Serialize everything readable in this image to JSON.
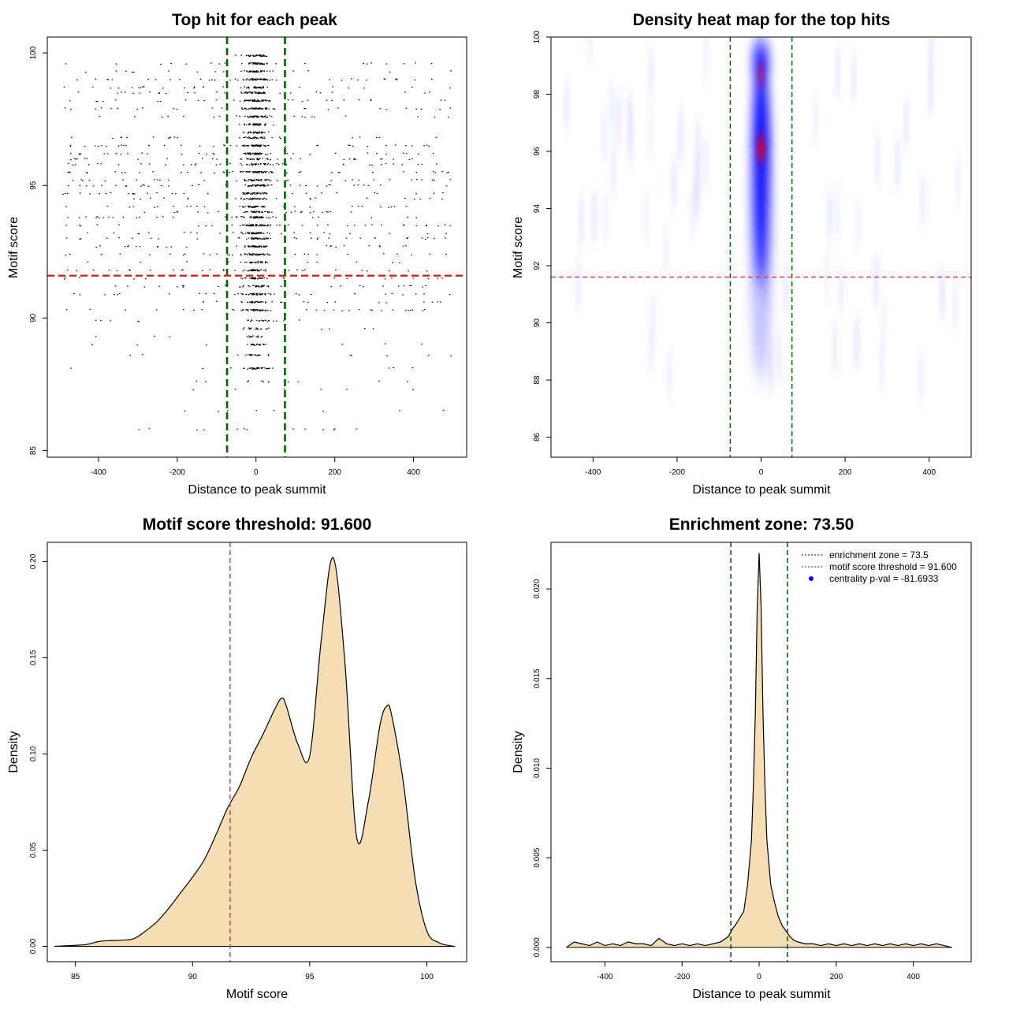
{
  "chart_data": [
    {
      "type": "scatter",
      "title": "Top hit for each peak",
      "xlabel": "Distance to peak summit",
      "ylabel": "Motif score",
      "xlim": [
        -530,
        535
      ],
      "ylim": [
        84.75,
        100.6
      ],
      "xticks": [
        -400,
        -200,
        0,
        200,
        400
      ],
      "yticks": [
        85,
        90,
        95,
        100
      ],
      "vlines": [
        -73.5,
        73.5
      ],
      "hline": 91.6,
      "colors": {
        "vline": "#006400",
        "hline": "#dd2222",
        "points": "#000000"
      }
    },
    {
      "type": "heatmap",
      "title": "Density heat map for the top hits",
      "xlabel": "Distance to peak summit",
      "ylabel": "Motif score",
      "xlim": [
        -500,
        500
      ],
      "ylim": [
        85.3,
        100
      ],
      "xticks": [
        -400,
        -200,
        0,
        200,
        400
      ],
      "yticks": [
        86,
        88,
        90,
        92,
        94,
        96,
        98,
        100
      ],
      "vlines": [
        -73.5,
        73.5
      ],
      "hline": 91.6,
      "colors": {
        "low": "#ffffff",
        "mid": "#0000ff",
        "high": "#ff0000",
        "vline": "#006400",
        "hline": "#dd3344"
      }
    },
    {
      "type": "area",
      "title": "Motif score threshold: 91.600",
      "xlabel": "Motif score",
      "ylabel": "Density",
      "xlim": [
        83.8,
        101.7
      ],
      "ylim": [
        -0.008,
        0.21
      ],
      "xticks": [
        85,
        90,
        95,
        100
      ],
      "yticks": [
        0.0,
        0.05,
        0.1,
        0.15,
        0.2
      ],
      "ytick_labels": [
        "0.00",
        "0.05",
        "0.10",
        "0.15",
        "0.20"
      ],
      "vline": 91.6,
      "x": [
        84.1,
        85.0,
        85.5,
        86.0,
        86.5,
        87.0,
        87.5,
        88.0,
        88.5,
        89.0,
        89.5,
        90.0,
        90.5,
        91.0,
        91.5,
        92.0,
        92.5,
        93.0,
        93.5,
        93.8,
        94.0,
        94.5,
        95.0,
        95.5,
        96.0,
        96.5,
        97.0,
        97.5,
        98.0,
        98.3,
        98.5,
        99.0,
        99.5,
        100.0,
        100.5,
        101.0,
        101.2
      ],
      "y": [
        0.0,
        0.0005,
        0.001,
        0.0025,
        0.003,
        0.0032,
        0.004,
        0.008,
        0.013,
        0.02,
        0.028,
        0.036,
        0.045,
        0.058,
        0.072,
        0.083,
        0.098,
        0.11,
        0.123,
        0.129,
        0.125,
        0.105,
        0.099,
        0.16,
        0.202,
        0.148,
        0.057,
        0.075,
        0.115,
        0.125,
        0.12,
        0.085,
        0.035,
        0.008,
        0.002,
        0.0003,
        0.0
      ],
      "colors": {
        "fill": "#f5deb3",
        "line": "#000000",
        "vline": "#dd3344"
      }
    },
    {
      "type": "area",
      "title": "Enrichment zone: 73.50",
      "xlabel": "Distance to peak summit",
      "ylabel": "Density",
      "xlim": [
        -540,
        550
      ],
      "ylim": [
        -0.0008,
        0.0226
      ],
      "xticks": [
        -400,
        -200,
        0,
        200,
        400
      ],
      "yticks": [
        0.0,
        0.005,
        0.01,
        0.015,
        0.02
      ],
      "ytick_labels": [
        "0.000",
        "0.005",
        "0.010",
        "0.015",
        "0.020"
      ],
      "vlines": [
        -73.5,
        73.5
      ],
      "x": [
        -500,
        -480,
        -460,
        -440,
        -420,
        -400,
        -380,
        -360,
        -340,
        -320,
        -300,
        -280,
        -260,
        -240,
        -220,
        -200,
        -180,
        -160,
        -140,
        -120,
        -100,
        -80,
        -70,
        -60,
        -40,
        -30,
        -20,
        -15,
        -10,
        -5,
        0,
        5,
        10,
        15,
        20,
        30,
        40,
        50,
        60,
        70,
        80,
        90,
        100,
        120,
        140,
        160,
        180,
        200,
        220,
        240,
        260,
        280,
        300,
        320,
        340,
        360,
        380,
        400,
        420,
        440,
        460,
        480,
        500
      ],
      "y": [
        0.0,
        0.0003,
        0.0002,
        0.0001,
        0.0003,
        0.0001,
        0.0002,
        0.0001,
        0.0003,
        0.0002,
        0.0002,
        0.0001,
        0.0005,
        0.0002,
        0.0001,
        0.0002,
        0.0001,
        0.0002,
        0.0001,
        0.0002,
        0.0003,
        0.0006,
        0.001,
        0.0013,
        0.002,
        0.0035,
        0.006,
        0.009,
        0.013,
        0.019,
        0.022,
        0.019,
        0.013,
        0.009,
        0.006,
        0.0035,
        0.0025,
        0.0017,
        0.0012,
        0.0009,
        0.0006,
        0.0004,
        0.0003,
        0.0002,
        0.0002,
        0.0001,
        0.0002,
        0.0001,
        0.0002,
        0.0001,
        0.0002,
        0.0001,
        0.0002,
        0.0001,
        0.0002,
        0.0001,
        0.0002,
        0.0001,
        0.0002,
        0.0001,
        0.0002,
        0.0001,
        0.0
      ],
      "legend": {
        "placement": "top-right",
        "items": [
          {
            "label": "enrichment zone = 73.5",
            "style": "dotted",
            "color": "#006400"
          },
          {
            "label": "motif score threshold = 91.600",
            "style": "dotted",
            "color": "#dd3344"
          },
          {
            "label": "centrality p-val = -81.6933",
            "style": "point",
            "color": "#0000ff"
          }
        ]
      },
      "colors": {
        "fill": "#f5deb3",
        "line": "#000000",
        "vline": "#006400"
      }
    }
  ]
}
